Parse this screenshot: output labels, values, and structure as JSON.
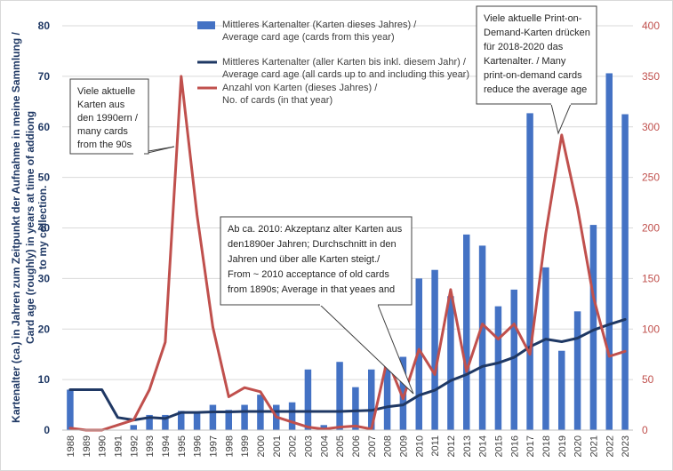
{
  "chart_data": {
    "type": "bar",
    "categories": [
      "1988",
      "1989",
      "1990",
      "1991",
      "1992",
      "1993",
      "1994",
      "1995",
      "1996",
      "1997",
      "1998",
      "1999",
      "2000",
      "2001",
      "2002",
      "2003",
      "2004",
      "2005",
      "2006",
      "2007",
      "2008",
      "2009",
      "2010",
      "2011",
      "2012",
      "2013",
      "2014",
      "2015",
      "2016",
      "2017",
      "2018",
      "2019",
      "2020",
      "2021",
      "2022",
      "2023"
    ],
    "series": [
      {
        "name": "Mittleres Kartenalter (Karten dieses Jahres) / Average card age (cards from this year)",
        "type": "bar",
        "axis": "left",
        "color": "#4472c4",
        "values": [
          8,
          0,
          0,
          0,
          1,
          3,
          3,
          3.8,
          3.5,
          5,
          4,
          5,
          7,
          5,
          5.5,
          12,
          1,
          13.5,
          8.5,
          12,
          14,
          14.5,
          30,
          31.7,
          26.5,
          38.7,
          36.5,
          24.5,
          27.8,
          62.7,
          32.2,
          15.7,
          23.5,
          40.6,
          70.6,
          62.5
        ]
      },
      {
        "name": "Mittleres Kartenalter (aller Karten bis inkl. diesem Jahr) / Average card age (all cards up to and including this year)",
        "type": "line",
        "axis": "left",
        "color": "#1f3864",
        "values": [
          8,
          8,
          8,
          2.5,
          2,
          2.5,
          2.3,
          3.5,
          3.5,
          3.6,
          3.6,
          3.7,
          3.7,
          3.7,
          3.7,
          3.7,
          3.7,
          3.7,
          3.8,
          3.9,
          4.6,
          5.0,
          6.9,
          7.9,
          9.8,
          11.0,
          12.6,
          13.3,
          14.4,
          16.5,
          18.0,
          17.5,
          18.2,
          19.8,
          20.9,
          21.9
        ]
      },
      {
        "name": "Anzahl von Karten (dieses Jahres) / No. of cards (in that year)",
        "type": "line",
        "axis": "right",
        "color": "#c0504d",
        "values": [
          2,
          0,
          0,
          5,
          10,
          40,
          87,
          350,
          213,
          102,
          33,
          42,
          38,
          13,
          8,
          3,
          1,
          3,
          4,
          1,
          70,
          31,
          80,
          55,
          139,
          58,
          105,
          90,
          105,
          75,
          195,
          292,
          220,
          132,
          73,
          78
        ]
      }
    ],
    "y_left": {
      "min": 0,
      "max": 80,
      "step": 10
    },
    "y_right": {
      "min": 0,
      "max": 400,
      "step": 50
    },
    "ylabel": "Kartenalter (ca.) in Jahren zum Zeitpunkt der Aufnahme in meine Sammlung / Card age (roughly) in years at time of addiong to my collection.",
    "ylabel_lines": [
      "Kartenalter (ca.) in Jahren zum Zeitpunkt der Aufnahme in meine Sammlung  /",
      "Card age (roughly) in years at time of addiong",
      "to my collection."
    ],
    "legend_position": "top-center",
    "legend": [
      {
        "lines": [
          "Mittleres Kartenalter (Karten dieses Jahres) /",
          "Average card age (cards from this year)"
        ]
      },
      {
        "lines": [
          "Mittleres Kartenalter (aller Karten bis inkl. diesem Jahr) /",
          "Average card age (all cards up to and including this year)"
        ]
      },
      {
        "lines": [
          "Anzahl von Karten (dieses Jahres) /",
          "No. of cards (in that year)"
        ]
      }
    ],
    "annotations": [
      {
        "lines": [
          "Viele aktuelle",
          "Karten aus",
          "den 1990ern /",
          "many cards",
          "from the 90s"
        ]
      },
      {
        "lines": [
          "Viele aktuelle Print-on-",
          "Demand-Karten drücken",
          "für 2018-2020 das",
          "Kartenalter. / Many",
          "print-on-demand cards",
          "reduce the average age"
        ]
      },
      {
        "lines": [
          "Ab ca. 2010: Akzeptanz alter Karten aus",
          "den1890er Jahren; Durchschnitt in den",
          "Jahren und über alle Karten steigt./",
          "From ~ 2010 acceptance of old cards",
          "from 1890s; Average in that yeaes and"
        ]
      }
    ],
    "grid": true
  }
}
